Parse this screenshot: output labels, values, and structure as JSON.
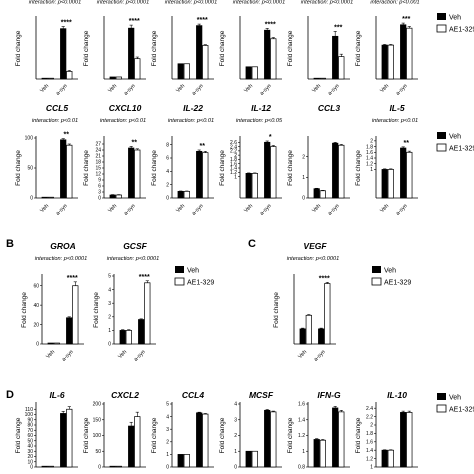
{
  "legend": {
    "veh": "Veh",
    "ae": "AE1-329"
  },
  "panel_letters": [
    "B",
    "C",
    "D"
  ],
  "chart_data": [
    {
      "group": "A1",
      "type": "bar",
      "title": "",
      "interaction": "interaction: p<0.0001",
      "ylabel": "Fold change",
      "categories": [
        "Veh",
        "a-syn"
      ],
      "ylim": [
        0,
        200
      ],
      "ticks": [],
      "series": [
        {
          "values": [
            1,
            165
          ],
          "errors": [
            0,
            7
          ]
        },
        {
          "values": [
            1,
            25
          ],
          "errors": [
            0,
            3
          ]
        }
      ],
      "significance": "****"
    },
    {
      "group": "A1",
      "type": "bar",
      "title": "",
      "interaction": "interaction: p<0.0001",
      "ylabel": "Fold change",
      "categories": [
        "Veh",
        "a-syn"
      ],
      "ylim": [
        0,
        30
      ],
      "ticks": [],
      "series": [
        {
          "values": [
            1,
            25
          ],
          "errors": [
            0,
            1.5
          ]
        },
        {
          "values": [
            1,
            10
          ],
          "errors": [
            0,
            0.8
          ]
        }
      ],
      "significance": "****"
    },
    {
      "group": "A1",
      "type": "bar",
      "title": "",
      "interaction": "interaction: p<0.0001",
      "ylabel": "Fold change",
      "categories": [
        "Veh",
        "a-syn"
      ],
      "ylim": [
        0,
        4
      ],
      "ticks": [],
      "series": [
        {
          "values": [
            1,
            3.5
          ],
          "errors": [
            0,
            0.1
          ]
        },
        {
          "values": [
            1,
            2.2
          ],
          "errors": [
            0,
            0.05
          ]
        }
      ],
      "significance": "****"
    },
    {
      "group": "A1",
      "type": "bar",
      "title": "",
      "interaction": "interaction: p<0.0001",
      "ylabel": "Fold change",
      "categories": [
        "Veh",
        "a-syn"
      ],
      "ylim": [
        0,
        5
      ],
      "ticks": [],
      "series": [
        {
          "values": [
            1,
            4
          ],
          "errors": [
            0,
            0.15
          ]
        },
        {
          "values": [
            1,
            3.3
          ],
          "errors": [
            0,
            0.1
          ]
        }
      ],
      "significance": "****"
    },
    {
      "group": "A1",
      "type": "bar",
      "title": "",
      "interaction": "interaction: p<0.0001",
      "ylabel": "Fold change",
      "categories": [
        "Veh",
        "a-syn"
      ],
      "ylim": [
        0,
        150
      ],
      "ticks": [],
      "series": [
        {
          "values": [
            1,
            105
          ],
          "errors": [
            0,
            12
          ]
        },
        {
          "values": [
            1,
            55
          ],
          "errors": [
            0,
            6
          ]
        }
      ],
      "significance": "***"
    },
    {
      "group": "A1",
      "type": "bar",
      "title": "",
      "interaction": "interaction: p<0.001",
      "ylabel": "Fold change",
      "categories": [
        "Veh",
        "a-syn"
      ],
      "ylim": [
        0,
        1.8
      ],
      "ticks": [],
      "series": [
        {
          "values": [
            1.0,
            1.6
          ],
          "errors": [
            0.02,
            0.05
          ]
        },
        {
          "values": [
            1.0,
            1.5
          ],
          "errors": [
            0.02,
            0.05
          ]
        }
      ],
      "significance": "***"
    },
    {
      "group": "A2",
      "type": "bar",
      "title": "CCL5",
      "interaction": "interaction: p<0.01",
      "ylabel": "Fold change",
      "categories": [
        "Veh",
        "a-syn"
      ],
      "ylim": [
        0,
        100
      ],
      "ticks": [
        0,
        50,
        100
      ],
      "series": [
        {
          "values": [
            1,
            97
          ],
          "errors": [
            0,
            2
          ]
        },
        {
          "values": [
            1,
            88
          ],
          "errors": [
            0,
            2
          ]
        }
      ],
      "significance": "**"
    },
    {
      "group": "A2",
      "type": "bar",
      "title": "CXCL10",
      "interaction": "interaction: p<0.01",
      "ylabel": "Fold change",
      "categories": [
        "Veh",
        "a-syn"
      ],
      "ylim": [
        0,
        30
      ],
      "ticks": [
        0,
        3,
        6,
        9,
        12,
        15,
        18,
        21,
        24,
        27
      ],
      "series": [
        {
          "values": [
            1.5,
            25
          ],
          "errors": [
            0.2,
            0.8
          ]
        },
        {
          "values": [
            1.5,
            24
          ],
          "errors": [
            0.2,
            0.6
          ]
        }
      ],
      "significance": "**"
    },
    {
      "group": "A2",
      "type": "bar",
      "title": "IL-22",
      "interaction": "interaction: p<0.01",
      "ylabel": "Fold change",
      "categories": [
        "Veh",
        "a-syn"
      ],
      "ylim": [
        0,
        9
      ],
      "ticks": [
        0,
        2,
        4,
        6,
        8
      ],
      "series": [
        {
          "values": [
            1,
            7
          ],
          "errors": [
            0.05,
            0.2
          ]
        },
        {
          "values": [
            1,
            6.8
          ],
          "errors": [
            0.05,
            0.2
          ]
        }
      ],
      "significance": "**"
    },
    {
      "group": "A2",
      "type": "bar",
      "title": "IL-12",
      "interaction": "interaction: p<0.05",
      "ylabel": "Fold change",
      "categories": [
        "Veh",
        "a-syn"
      ],
      "ylim": [
        0,
        2.8
      ],
      "ticks": [
        1.0,
        1.2,
        1.4,
        1.6,
        1.8,
        2.0,
        2.2,
        2.4,
        2.6
      ],
      "series": [
        {
          "values": [
            1.15,
            2.6
          ],
          "errors": [
            0.02,
            0.06
          ]
        },
        {
          "values": [
            1.15,
            2.4
          ],
          "errors": [
            0.02,
            0.05
          ]
        }
      ],
      "significance": "*"
    },
    {
      "group": "A2",
      "type": "bar",
      "title": "CCL3",
      "interaction": "",
      "ylabel": "Fold change",
      "categories": [
        "Veh",
        "a-syn"
      ],
      "ylim": [
        0,
        2.9
      ],
      "ticks": [
        0,
        1,
        2
      ],
      "series": [
        {
          "values": [
            0.45,
            2.65
          ],
          "errors": [
            0.02,
            0.04
          ]
        },
        {
          "values": [
            0.35,
            2.55
          ],
          "errors": [
            0.02,
            0.04
          ]
        }
      ],
      "significance": ""
    },
    {
      "group": "A2",
      "type": "bar",
      "title": "IL-5",
      "interaction": "interaction: p<0.01",
      "ylabel": "Fold change",
      "categories": [
        "Veh",
        "a-syn"
      ],
      "ylim": [
        0,
        2.1
      ],
      "ticks": [
        1.0,
        1.2,
        1.4,
        1.6,
        1.8,
        2.0
      ],
      "series": [
        {
          "values": [
            1.0,
            1.75
          ],
          "errors": [
            0.02,
            0.04
          ]
        },
        {
          "values": [
            1.0,
            1.6
          ],
          "errors": [
            0.02,
            0.04
          ]
        }
      ],
      "significance": "**"
    },
    {
      "group": "B",
      "type": "bar",
      "title": "GROA",
      "interaction": "interaction: p<0.0001",
      "ylabel": "Fold change",
      "categories": [
        "Veh",
        "a-syn"
      ],
      "ylim": [
        0,
        70
      ],
      "ticks": [
        0,
        20,
        40,
        60
      ],
      "series": [
        {
          "values": [
            1,
            27
          ],
          "errors": [
            0,
            1
          ]
        },
        {
          "values": [
            1,
            60
          ],
          "errors": [
            0,
            4
          ]
        }
      ],
      "significance": "****"
    },
    {
      "group": "B",
      "type": "bar",
      "title": "GCSF",
      "interaction": "interaction: p<0.0001",
      "ylabel": "Fold change",
      "categories": [
        "Veh",
        "a-syn"
      ],
      "ylim": [
        0,
        5
      ],
      "ticks": [
        0,
        1,
        2,
        3,
        4,
        5
      ],
      "series": [
        {
          "values": [
            1,
            1.8
          ],
          "errors": [
            0.05,
            0.05
          ]
        },
        {
          "values": [
            1,
            4.5
          ],
          "errors": [
            0.05,
            0.15
          ]
        }
      ],
      "significance": "****"
    },
    {
      "group": "C",
      "type": "bar",
      "title": "VEGF",
      "interaction": "interaction: p<0.0001",
      "ylabel": "Fold change",
      "categories": [
        "Veh",
        "a-syn"
      ],
      "ylim": [
        0,
        4.5
      ],
      "ticks": [],
      "series": [
        {
          "values": [
            1,
            1
          ],
          "errors": [
            0.05,
            0.05
          ]
        },
        {
          "values": [
            1.9,
            4.0
          ],
          "errors": [
            0.05,
            0.08
          ]
        }
      ],
      "significance": "****"
    },
    {
      "group": "D",
      "type": "bar",
      "title": "IL-6",
      "interaction": "",
      "ylabel": "Fold change",
      "categories": [
        "",
        ""
      ],
      "ylim": [
        0,
        120
      ],
      "ticks": [
        0,
        10,
        20,
        30,
        40,
        50,
        60,
        70,
        80,
        90,
        100,
        110
      ],
      "series": [
        {
          "values": [
            1,
            102
          ],
          "errors": [
            0,
            4
          ]
        },
        {
          "values": [
            1,
            110
          ],
          "errors": [
            0,
            5
          ]
        }
      ],
      "significance": ""
    },
    {
      "group": "D",
      "type": "bar",
      "title": "CXCL2",
      "interaction": "",
      "ylabel": "Fold change",
      "categories": [
        "",
        ""
      ],
      "ylim": [
        0,
        200
      ],
      "ticks": [
        0,
        50,
        100,
        150,
        200
      ],
      "series": [
        {
          "values": [
            1,
            130
          ],
          "errors": [
            0,
            12
          ]
        },
        {
          "values": [
            1,
            160
          ],
          "errors": [
            0,
            14
          ]
        }
      ],
      "significance": ""
    },
    {
      "group": "D",
      "type": "bar",
      "title": "CCL4",
      "interaction": "",
      "ylabel": "Fold change",
      "categories": [
        "",
        ""
      ],
      "ylim": [
        0,
        5
      ],
      "ticks": [
        0,
        1,
        2,
        3,
        4,
        5
      ],
      "series": [
        {
          "values": [
            1,
            4.3
          ],
          "errors": [
            0,
            0.05
          ]
        },
        {
          "values": [
            1,
            4.2
          ],
          "errors": [
            0,
            0.05
          ]
        }
      ],
      "significance": ""
    },
    {
      "group": "D",
      "type": "bar",
      "title": "MCSF",
      "interaction": "",
      "ylabel": "Fold change",
      "categories": [
        "",
        ""
      ],
      "ylim": [
        0,
        4
      ],
      "ticks": [
        0,
        1,
        2,
        3,
        4
      ],
      "series": [
        {
          "values": [
            1,
            3.6
          ],
          "errors": [
            0,
            0.05
          ]
        },
        {
          "values": [
            1,
            3.5
          ],
          "errors": [
            0,
            0.05
          ]
        }
      ],
      "significance": ""
    },
    {
      "group": "D",
      "type": "bar",
      "title": "IFN-G",
      "interaction": "",
      "ylabel": "Fold change",
      "categories": [
        "",
        ""
      ],
      "ylim": [
        0.8,
        1.6
      ],
      "ticks": [
        0.8,
        1.0,
        1.2,
        1.4,
        1.6
      ],
      "series": [
        {
          "values": [
            1.15,
            1.55
          ],
          "errors": [
            0.01,
            0.02
          ]
        },
        {
          "values": [
            1.14,
            1.5
          ],
          "errors": [
            0.01,
            0.02
          ]
        }
      ],
      "significance": ""
    },
    {
      "group": "D",
      "type": "bar",
      "title": "IL-10",
      "interaction": "",
      "ylabel": "Fold change",
      "categories": [
        "",
        ""
      ],
      "ylim": [
        1.0,
        2.5
      ],
      "ticks": [
        1.0,
        1.2,
        1.4,
        1.6,
        1.8,
        2.0,
        2.2,
        2.4
      ],
      "series": [
        {
          "values": [
            1.4,
            2.3
          ],
          "errors": [
            0.01,
            0.03
          ]
        },
        {
          "values": [
            1.4,
            2.3
          ],
          "errors": [
            0.01,
            0.03
          ]
        }
      ],
      "significance": ""
    }
  ]
}
